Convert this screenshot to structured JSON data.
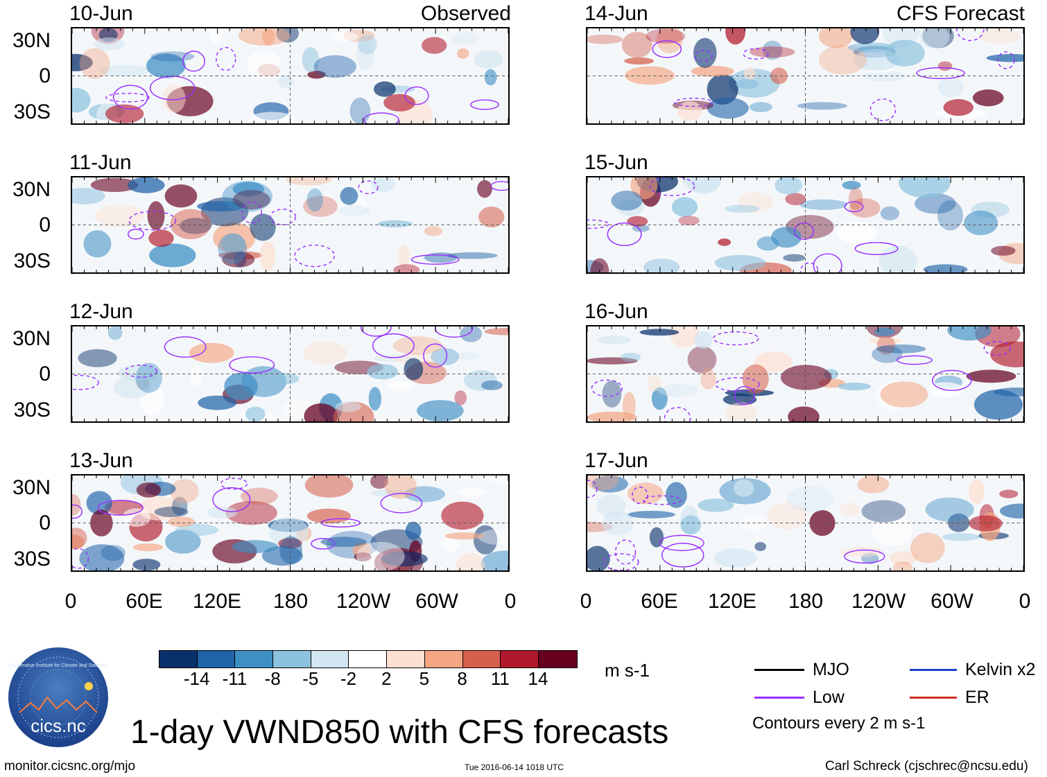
{
  "title": "1-day VWND850 with CFS forecasts",
  "observed_label": "Observed",
  "forecast_label": "CFS Forecast",
  "left_panels": [
    {
      "date": "10-Jun"
    },
    {
      "date": "11-Jun"
    },
    {
      "date": "12-Jun"
    },
    {
      "date": "13-Jun"
    }
  ],
  "right_panels": [
    {
      "date": "14-Jun"
    },
    {
      "date": "15-Jun"
    },
    {
      "date": "16-Jun"
    },
    {
      "date": "17-Jun"
    }
  ],
  "lat_labels": [
    "30N",
    "0",
    "30S"
  ],
  "lon_labels": [
    "0",
    "60E",
    "120E",
    "180",
    "120W",
    "60W",
    "0"
  ],
  "colorbar": {
    "colors": [
      "#08306b",
      "#1f63a8",
      "#3f8fc5",
      "#8cc2de",
      "#d3e6f1",
      "#ffffff",
      "#fde0d0",
      "#f4a582",
      "#d6604d",
      "#b2182b",
      "#67001f"
    ],
    "ticks": [
      "-14",
      "-11",
      "-8",
      "-5",
      "-2",
      "2",
      "5",
      "8",
      "11",
      "14"
    ],
    "units": "m s-1"
  },
  "legend": {
    "items": [
      {
        "label": "MJO",
        "color": "#000000"
      },
      {
        "label": "Kelvin x2",
        "color": "#2040d0"
      },
      {
        "label": "Low",
        "color": "#9b30ff"
      },
      {
        "label": "ER",
        "color": "#d03020"
      }
    ],
    "note": "Contours every 2 m s-1"
  },
  "logo_text": "cics.nc",
  "logo_ring_text": "Cooperative Institute for Climate and Satellites",
  "footer": {
    "url": "monitor.cicsnc.org/mjo",
    "timestamp": "Tue 2016-06-14 1018 UTC",
    "author": "Carl Schreck (cjschrec@ncsu.edu)"
  }
}
